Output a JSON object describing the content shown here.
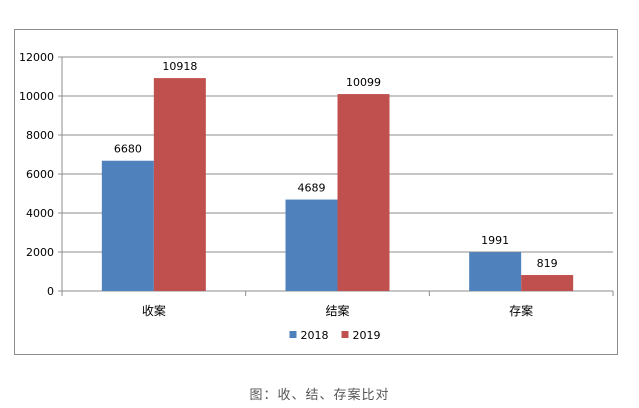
{
  "chart_data": {
    "type": "bar",
    "categories": [
      "收案",
      "结案",
      "存案"
    ],
    "series": [
      {
        "name": "2018",
        "values": [
          6680,
          4689,
          1991
        ],
        "color": "#4f81bd"
      },
      {
        "name": "2019",
        "values": [
          10918,
          10099,
          819
        ],
        "color": "#c0504d"
      }
    ],
    "ylim": [
      0,
      12000
    ],
    "yticks": [
      0,
      2000,
      4000,
      6000,
      8000,
      10000,
      12000
    ],
    "grid": true,
    "legend_position": "bottom",
    "data_labels": true
  },
  "caption": "图：收、结、存案比对"
}
